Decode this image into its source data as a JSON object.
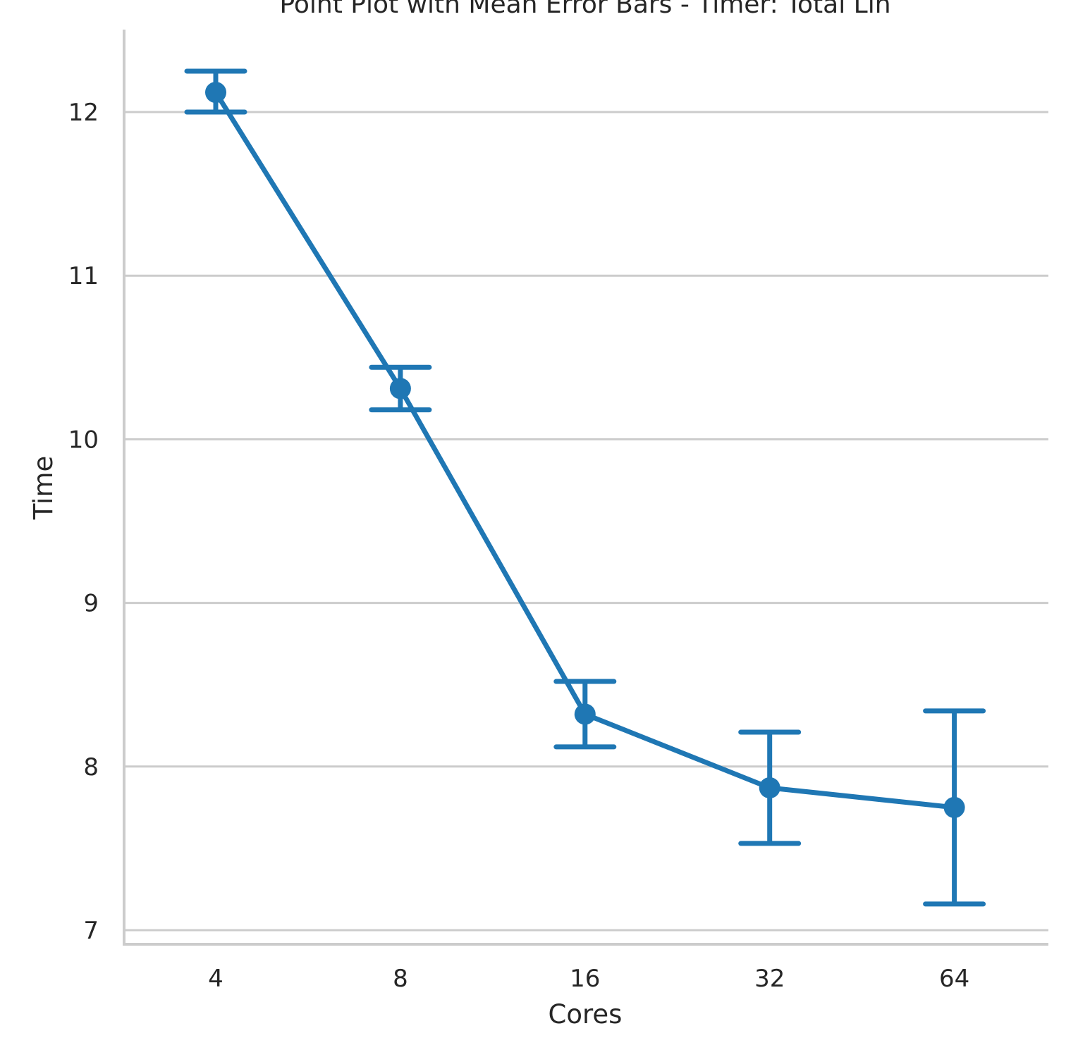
{
  "chart_data": {
    "type": "line",
    "title": "Point Plot with Mean Error Bars - Timer: Total Lin",
    "xlabel": "Cores",
    "ylabel": "Time",
    "categories": [
      "4",
      "8",
      "16",
      "32",
      "64"
    ],
    "series": [
      {
        "values": [
          12.12,
          10.31,
          8.32,
          7.87,
          7.75
        ],
        "error_low": [
          12.0,
          10.18,
          8.12,
          7.53,
          7.16
        ],
        "error_high": [
          12.25,
          10.44,
          8.52,
          8.21,
          8.34
        ],
        "color": "#1f77b4"
      }
    ],
    "ylim": [
      6.92,
      12.5
    ],
    "yticks": [
      7,
      8,
      9,
      10,
      11,
      12
    ],
    "grid": "horizontal",
    "style": "point plot with error bars"
  }
}
